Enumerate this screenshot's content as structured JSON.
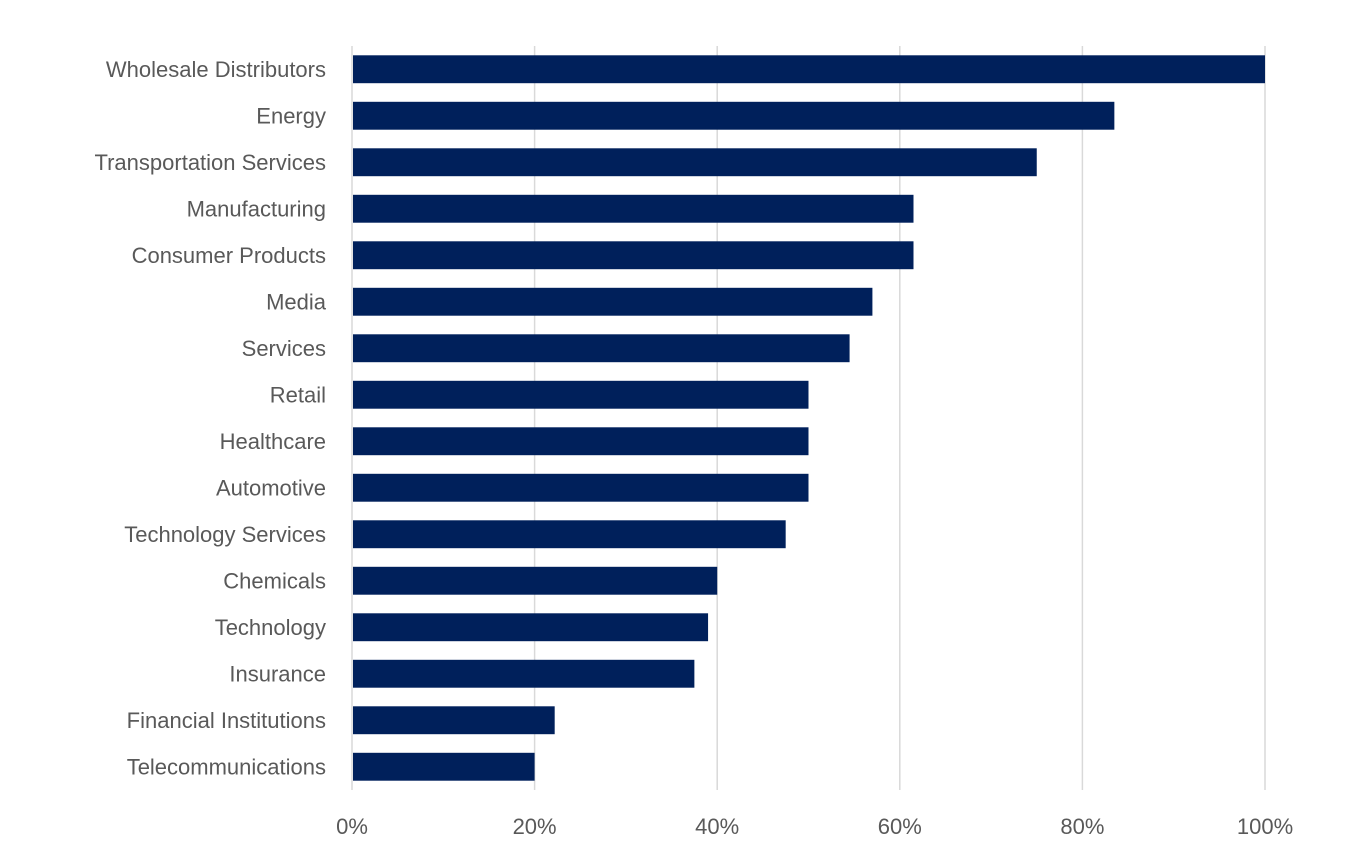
{
  "chart_data": {
    "type": "bar",
    "orientation": "horizontal",
    "categories": [
      "Wholesale Distributors",
      "Energy",
      "Transportation Services",
      "Manufacturing",
      "Consumer Products",
      "Media",
      "Services",
      "Retail",
      "Healthcare",
      "Automotive",
      "Technology Services",
      "Chemicals",
      "Technology",
      "Insurance",
      "Financial Institutions",
      "Telecommunications"
    ],
    "values": [
      100,
      83.5,
      75,
      61.5,
      61.5,
      57,
      54.5,
      50,
      50,
      50,
      47.5,
      40,
      39,
      37.5,
      22.2,
      20
    ],
    "xlim": [
      0,
      100
    ],
    "xticks": [
      0,
      20,
      40,
      60,
      80,
      100
    ],
    "xtick_labels": [
      "0%",
      "20%",
      "40%",
      "60%",
      "80%",
      "100%"
    ],
    "grid": "vertical",
    "legend": "none",
    "colors": {
      "bar": "#00205B",
      "grid": "#D9D9D9",
      "text": "#595959"
    }
  }
}
